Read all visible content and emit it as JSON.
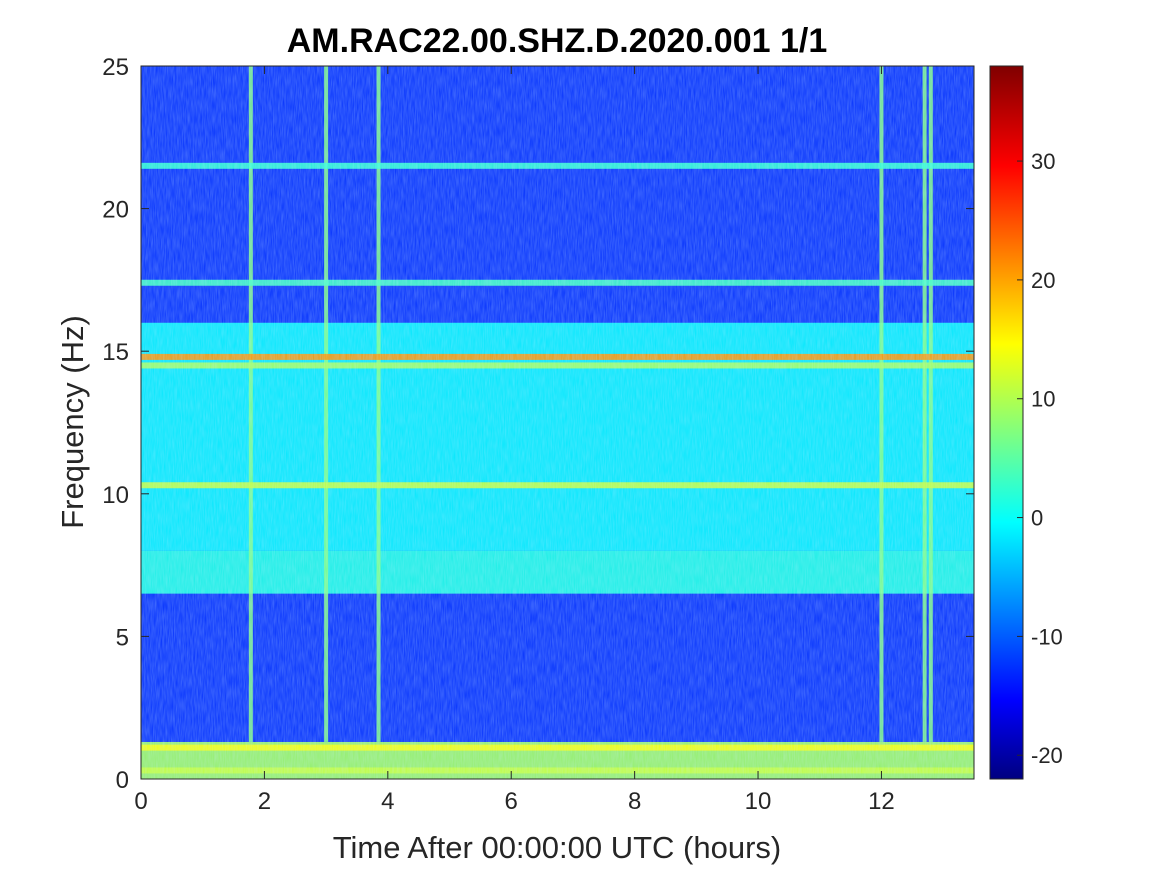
{
  "chart_data": {
    "type": "heatmap",
    "title": "AM.RAC22.00.SHZ.D.2020.001 1/1",
    "xlabel": "Time After 00:00:00 UTC (hours)",
    "ylabel": "Frequency (Hz)",
    "xlim": [
      0,
      13.5
    ],
    "ylim": [
      0,
      25
    ],
    "x_ticks": [
      0,
      2,
      4,
      6,
      8,
      10,
      12
    ],
    "y_ticks": [
      0,
      5,
      10,
      15,
      20,
      25
    ],
    "colorbar": {
      "colormap": "jet",
      "clim": [
        -22,
        38
      ],
      "ticks": [
        -20,
        -10,
        0,
        10,
        20,
        30
      ]
    },
    "background_bands": [
      {
        "f_min": 0,
        "f_max": 1.3,
        "level": 10
      },
      {
        "f_min": 1.3,
        "f_max": 6.5,
        "level": -12
      },
      {
        "f_min": 6.5,
        "f_max": 8,
        "level": 2
      },
      {
        "f_min": 8,
        "f_max": 16,
        "level": 0
      },
      {
        "f_min": 16,
        "f_max": 25,
        "level": -12
      }
    ],
    "spectral_lines": [
      {
        "freq": 0.3,
        "level": 12
      },
      {
        "freq": 1.1,
        "level": 15
      },
      {
        "freq": 10.3,
        "level": 12
      },
      {
        "freq": 14.5,
        "level": 10
      },
      {
        "freq": 14.8,
        "level": 22
      },
      {
        "freq": 17.4,
        "level": 4
      },
      {
        "freq": 21.5,
        "level": 3
      }
    ],
    "broadband_events_hours": [
      1.78,
      3.0,
      3.85,
      12.0,
      12.7,
      12.8
    ]
  }
}
